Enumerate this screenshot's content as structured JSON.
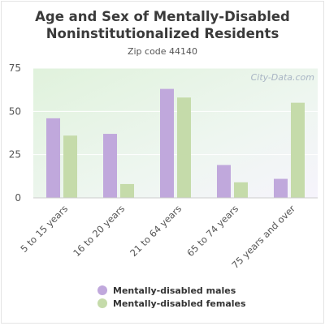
{
  "chart_data": {
    "type": "bar",
    "title": "Age and Sex of Mentally-Disabled Noninstitutionalized Residents",
    "subtitle": "Zip code 44140",
    "categories": [
      "5 to 15 years",
      "16 to 20 years",
      "21 to 64 years",
      "65 to 74 years",
      "75 years and over"
    ],
    "series": [
      {
        "name": "Mentally-disabled males",
        "color": "#c0a8dc",
        "values": [
          46,
          37,
          63,
          19,
          11
        ]
      },
      {
        "name": "Mentally-disabled females",
        "color": "#c5dbaa",
        "values": [
          36,
          8,
          58,
          9,
          55
        ]
      }
    ],
    "ylim": [
      0,
      75
    ],
    "yticks": [
      0,
      25,
      50,
      75
    ],
    "grid": true,
    "legend_position": "bottom",
    "watermark": "City-Data.com"
  }
}
